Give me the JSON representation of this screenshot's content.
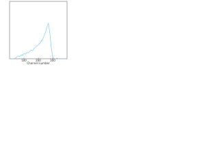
{
  "chart_data": {
    "type": "line",
    "x_label": "Channel number",
    "x": [
      0,
      10,
      20,
      30,
      40,
      50,
      60,
      70,
      80,
      90,
      100,
      110,
      120,
      130,
      140,
      150,
      160,
      170,
      180,
      190,
      200,
      210,
      220,
      230,
      240,
      250,
      260,
      270,
      280,
      290,
      300,
      310,
      320,
      330,
      340,
      350,
      360,
      370,
      380,
      390
    ],
    "series": [
      {
        "color": "#6ec6ee",
        "values": [
          0,
          0,
          0,
          0,
          1,
          3,
          5,
          4,
          7,
          6,
          9,
          8,
          11,
          10,
          13,
          15,
          14,
          18,
          20,
          22,
          24,
          27,
          30,
          34,
          40,
          46,
          55,
          62,
          45,
          20,
          3,
          0,
          0,
          1,
          0,
          0,
          0,
          0,
          0,
          0
        ]
      }
    ],
    "xlim": [
      0,
      400
    ],
    "ylim": [
      0,
      100
    ],
    "xticks": [
      100,
      200,
      300
    ]
  }
}
